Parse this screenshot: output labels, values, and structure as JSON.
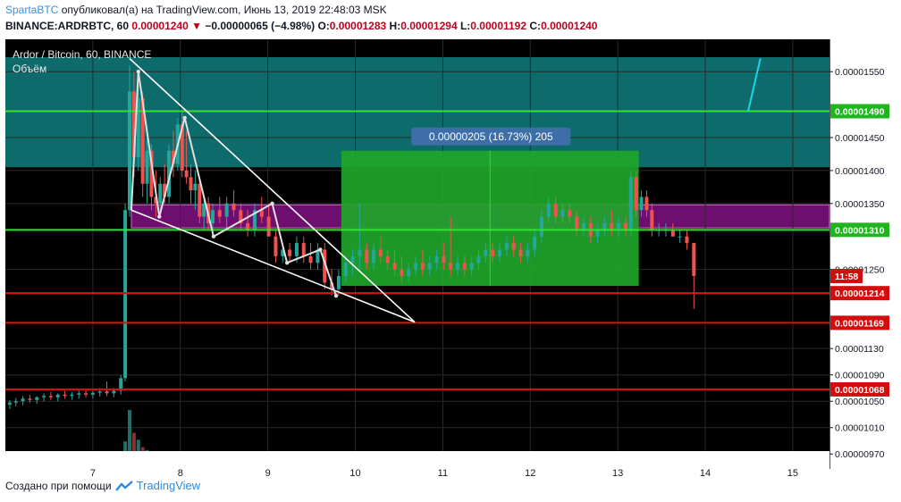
{
  "header": {
    "author": "SpartaBTC",
    "published_text": "опубликовал(а) на TradingView.com, Июнь 13, 2019 22:48:03 MSK",
    "symbol": "BINANCE:ARDRBTC, 60",
    "last": "0.00001240",
    "change_arrow": "▼",
    "change": "−0.00000065 (−4.98%)",
    "o_label": "O:",
    "o": "0.00001283",
    "h_label": "H:",
    "h": "0.00001294",
    "l_label": "L:",
    "l": "0.00001192",
    "c_label": "C:",
    "c": "0.00001240"
  },
  "footer": {
    "text": "Создано при помощи",
    "brand": "TradingView"
  },
  "colors": {
    "up": "#26a69a",
    "down": "#ef5350",
    "teal_zone": "#0e6b6b",
    "purple_zone": "#6e0e6e",
    "green_box": "#1fa82a",
    "green_line": "#33e033",
    "red_line": "#e01010"
  },
  "chart_data": {
    "type": "candlestick",
    "legend_line1": "Ardor / Bitcoin, 60, BINANCE",
    "legend_line2": "Объём",
    "x_ticks": [
      "7",
      "8",
      "9",
      "10",
      "11",
      "12",
      "13",
      "14",
      "15"
    ],
    "x_tick_days": [
      7,
      8,
      9,
      10,
      11,
      12,
      13,
      14,
      15
    ],
    "x_range_days": [
      6.0,
      15.42
    ],
    "y_range": [
      9.5e-06,
      1.572e-05
    ],
    "y_ticks": [
      "0.00001550",
      "0.00001450",
      "0.00001400",
      "0.00001350",
      "0.00001250",
      "0.00001130",
      "0.00001090",
      "0.00001050",
      "0.00001010",
      "0.00000970"
    ],
    "y_tick_values": [
      1.55e-05,
      1.45e-05,
      1.4e-05,
      1.35e-05,
      1.25e-05,
      1.13e-05,
      1.09e-05,
      1.05e-05,
      1.01e-05,
      9.7e-06
    ],
    "horizontal_levels": [
      {
        "value": 1.49e-05,
        "label": "0.00001490",
        "color": "#33e033"
      },
      {
        "value": 1.31e-05,
        "label": "0.00001310",
        "color": "#33e033"
      },
      {
        "value": 1.214e-05,
        "label": "0.00001214",
        "color": "#e01010"
      },
      {
        "value": 1.169e-05,
        "label": "0.00001169",
        "color": "#e01010"
      },
      {
        "value": 1.068e-05,
        "label": "0.00001068",
        "color": "#e01010"
      }
    ],
    "zones": [
      {
        "from": 1.405e-05,
        "to": 1.572e-05,
        "color": "#0e6b6b"
      },
      {
        "from": 1.313e-05,
        "to": 1.348e-05,
        "color": "#6e0e6e",
        "x_from": 7.44,
        "x_to": 15.42
      }
    ],
    "measure_box": {
      "x_from": 9.84,
      "x_to": 13.24,
      "from": 1.225e-05,
      "to": 1.43e-05,
      "label": "0.00000205 (16.73%) 205"
    },
    "timer_label": {
      "value": 1.24e-05,
      "text": "11:58"
    },
    "wedge": {
      "upper": [
        [
          7.42,
          1.57e-05
        ],
        [
          10.68,
          1.17e-05
        ]
      ],
      "lower": [
        [
          7.44,
          1.34e-05
        ],
        [
          10.68,
          1.17e-05
        ]
      ]
    },
    "zigzag": [
      [
        7.44,
        1.34e-05
      ],
      [
        7.52,
        1.55e-05
      ],
      [
        7.76,
        1.33e-05
      ],
      [
        8.05,
        1.48e-05
      ],
      [
        8.38,
        1.3e-05
      ],
      [
        9.05,
        1.35e-05
      ],
      [
        9.22,
        1.26e-05
      ],
      [
        9.6,
        1.28e-05
      ],
      [
        9.78,
        1.21e-05
      ]
    ],
    "candles": [
      [
        6.05,
        1.045e-05,
        1.052e-05,
        1.038e-05,
        1.048e-05
      ],
      [
        6.12,
        1.048e-05,
        1.055e-05,
        1.042e-05,
        1.05e-05
      ],
      [
        6.2,
        1.05e-05,
        1.058e-05,
        1.044e-05,
        1.054e-05
      ],
      [
        6.28,
        1.054e-05,
        1.06e-05,
        1.048e-05,
        1.052e-05
      ],
      [
        6.36,
        1.052e-05,
        1.058e-05,
        1.046e-05,
        1.056e-05
      ],
      [
        6.44,
        1.056e-05,
        1.062e-05,
        1.05e-05,
        1.058e-05
      ],
      [
        6.52,
        1.058e-05,
        1.064e-05,
        1.052e-05,
        1.056e-05
      ],
      [
        6.6,
        1.056e-05,
        1.062e-05,
        1.05e-05,
        1.06e-05
      ],
      [
        6.68,
        1.06e-05,
        1.066e-05,
        1.054e-05,
        1.058e-05
      ],
      [
        6.76,
        1.058e-05,
        1.064e-05,
        1.052e-05,
        1.06e-05
      ],
      [
        6.84,
        1.06e-05,
        1.068e-05,
        1.054e-05,
        1.062e-05
      ],
      [
        6.92,
        1.062e-05,
        1.068e-05,
        1.056e-05,
        1.06e-05
      ],
      [
        7.0,
        1.06e-05,
        1.066e-05,
        1.054e-05,
        1.063e-05
      ],
      [
        7.08,
        1.063e-05,
        1.07e-05,
        1.057e-05,
        1.065e-05
      ],
      [
        7.16,
        1.065e-05,
        1.08e-05,
        1.058e-05,
        1.062e-05
      ],
      [
        7.24,
        1.062e-05,
        1.07e-05,
        1.056e-05,
        1.066e-05
      ],
      [
        7.32,
        1.066e-05,
        1.09e-05,
        1.06e-05,
        1.085e-05
      ],
      [
        7.37,
        1.085e-05,
        1.35e-05,
        1.08e-05,
        1.34e-05
      ],
      [
        7.42,
        1.34e-05,
        1.56e-05,
        1.33e-05,
        1.52e-05
      ],
      [
        7.47,
        1.52e-05,
        1.55e-05,
        1.39e-05,
        1.42e-05
      ],
      [
        7.52,
        1.42e-05,
        1.53e-05,
        1.4e-05,
        1.51e-05
      ],
      [
        7.57,
        1.51e-05,
        1.52e-05,
        1.36e-05,
        1.38e-05
      ],
      [
        7.62,
        1.38e-05,
        1.45e-05,
        1.35e-05,
        1.43e-05
      ],
      [
        7.67,
        1.43e-05,
        1.44e-05,
        1.34e-05,
        1.36e-05
      ],
      [
        7.72,
        1.36e-05,
        1.4e-05,
        1.33e-05,
        1.35e-05
      ],
      [
        7.77,
        1.35e-05,
        1.39e-05,
        1.33e-05,
        1.38e-05
      ],
      [
        7.82,
        1.38e-05,
        1.41e-05,
        1.35e-05,
        1.36e-05
      ],
      [
        7.87,
        1.36e-05,
        1.44e-05,
        1.35e-05,
        1.43e-05
      ],
      [
        7.92,
        1.43e-05,
        1.46e-05,
        1.39e-05,
        1.41e-05
      ],
      [
        7.97,
        1.41e-05,
        1.48e-05,
        1.4e-05,
        1.47e-05
      ],
      [
        8.02,
        1.47e-05,
        1.49e-05,
        1.39e-05,
        1.4e-05
      ],
      [
        8.07,
        1.4e-05,
        1.46e-05,
        1.38e-05,
        1.39e-05
      ],
      [
        8.12,
        1.39e-05,
        1.41e-05,
        1.35e-05,
        1.37e-05
      ],
      [
        8.17,
        1.37e-05,
        1.4e-05,
        1.34e-05,
        1.38e-05
      ],
      [
        8.22,
        1.38e-05,
        1.39e-05,
        1.32e-05,
        1.33e-05
      ],
      [
        8.27,
        1.33e-05,
        1.36e-05,
        1.31e-05,
        1.35e-05
      ],
      [
        8.32,
        1.35e-05,
        1.36e-05,
        1.31e-05,
        1.32e-05
      ],
      [
        8.37,
        1.32e-05,
        1.35e-05,
        1.3e-05,
        1.34e-05
      ],
      [
        8.45,
        1.34e-05,
        1.36e-05,
        1.32e-05,
        1.33e-05
      ],
      [
        8.53,
        1.33e-05,
        1.36e-05,
        1.31e-05,
        1.35e-05
      ],
      [
        8.61,
        1.35e-05,
        1.37e-05,
        1.33e-05,
        1.34e-05
      ],
      [
        8.69,
        1.34e-05,
        1.35e-05,
        1.31e-05,
        1.32e-05
      ],
      [
        8.77,
        1.32e-05,
        1.34e-05,
        1.3e-05,
        1.31e-05
      ],
      [
        8.85,
        1.31e-05,
        1.35e-05,
        1.3e-05,
        1.34e-05
      ],
      [
        8.93,
        1.34e-05,
        1.36e-05,
        1.32e-05,
        1.33e-05
      ],
      [
        9.01,
        1.33e-05,
        1.35e-05,
        1.3e-05,
        1.3e-05
      ],
      [
        9.09,
        1.3e-05,
        1.31e-05,
        1.26e-05,
        1.27e-05
      ],
      [
        9.17,
        1.27e-05,
        1.29e-05,
        1.26e-05,
        1.28e-05
      ],
      [
        9.25,
        1.28e-05,
        1.29e-05,
        1.26e-05,
        1.27e-05
      ],
      [
        9.33,
        1.27e-05,
        1.3e-05,
        1.26e-05,
        1.29e-05
      ],
      [
        9.41,
        1.29e-05,
        1.3e-05,
        1.26e-05,
        1.27e-05
      ],
      [
        9.49,
        1.27e-05,
        1.29e-05,
        1.25e-05,
        1.26e-05
      ],
      [
        9.57,
        1.26e-05,
        1.29e-05,
        1.25e-05,
        1.28e-05
      ],
      [
        9.65,
        1.28e-05,
        1.29e-05,
        1.22e-05,
        1.23e-05
      ],
      [
        9.73,
        1.23e-05,
        1.25e-05,
        1.21e-05,
        1.22e-05
      ],
      [
        9.81,
        1.22e-05,
        1.25e-05,
        1.21e-05,
        1.24e-05
      ],
      [
        9.89,
        1.24e-05,
        1.27e-05,
        1.23e-05,
        1.26e-05
      ],
      [
        9.97,
        1.26e-05,
        1.28e-05,
        1.24e-05,
        1.27e-05
      ],
      [
        10.05,
        1.27e-05,
        1.35e-05,
        1.25e-05,
        1.28e-05
      ],
      [
        10.13,
        1.28e-05,
        1.29e-05,
        1.25e-05,
        1.26e-05
      ],
      [
        10.21,
        1.26e-05,
        1.29e-05,
        1.25e-05,
        1.28e-05
      ],
      [
        10.29,
        1.28e-05,
        1.3e-05,
        1.26e-05,
        1.27e-05
      ],
      [
        10.37,
        1.27e-05,
        1.28e-05,
        1.25e-05,
        1.26e-05
      ],
      [
        10.45,
        1.26e-05,
        1.28e-05,
        1.24e-05,
        1.25e-05
      ],
      [
        10.53,
        1.25e-05,
        1.27e-05,
        1.23e-05,
        1.24e-05
      ],
      [
        10.61,
        1.24e-05,
        1.26e-05,
        1.23e-05,
        1.25e-05
      ],
      [
        10.69,
        1.25e-05,
        1.27e-05,
        1.24e-05,
        1.26e-05
      ],
      [
        10.77,
        1.26e-05,
        1.28e-05,
        1.24e-05,
        1.25e-05
      ],
      [
        10.85,
        1.25e-05,
        1.27e-05,
        1.24e-05,
        1.26e-05
      ],
      [
        10.93,
        1.26e-05,
        1.28e-05,
        1.25e-05,
        1.27e-05
      ],
      [
        11.01,
        1.27e-05,
        1.29e-05,
        1.25e-05,
        1.26e-05
      ],
      [
        11.09,
        1.26e-05,
        1.33e-05,
        1.24e-05,
        1.25e-05
      ],
      [
        11.17,
        1.25e-05,
        1.27e-05,
        1.24e-05,
        1.26e-05
      ],
      [
        11.25,
        1.26e-05,
        1.27e-05,
        1.24e-05,
        1.25e-05
      ],
      [
        11.33,
        1.25e-05,
        1.27e-05,
        1.24e-05,
        1.26e-05
      ],
      [
        11.41,
        1.26e-05,
        1.28e-05,
        1.25e-05,
        1.27e-05
      ],
      [
        11.49,
        1.27e-05,
        1.29e-05,
        1.26e-05,
        1.28e-05
      ],
      [
        11.57,
        1.28e-05,
        1.29e-05,
        1.26e-05,
        1.27e-05
      ],
      [
        11.65,
        1.27e-05,
        1.29e-05,
        1.26e-05,
        1.28e-05
      ],
      [
        11.73,
        1.28e-05,
        1.3e-05,
        1.27e-05,
        1.29e-05
      ],
      [
        11.81,
        1.29e-05,
        1.3e-05,
        1.27e-05,
        1.28e-05
      ],
      [
        11.89,
        1.28e-05,
        1.29e-05,
        1.26e-05,
        1.27e-05
      ],
      [
        11.97,
        1.27e-05,
        1.29e-05,
        1.26e-05,
        1.28e-05
      ],
      [
        12.05,
        1.28e-05,
        1.31e-05,
        1.27e-05,
        1.3e-05
      ],
      [
        12.13,
        1.3e-05,
        1.34e-05,
        1.29e-05,
        1.33e-05
      ],
      [
        12.21,
        1.33e-05,
        1.36e-05,
        1.32e-05,
        1.35e-05
      ],
      [
        12.29,
        1.35e-05,
        1.36e-05,
        1.32e-05,
        1.33e-05
      ],
      [
        12.37,
        1.33e-05,
        1.35e-05,
        1.32e-05,
        1.34e-05
      ],
      [
        12.45,
        1.34e-05,
        1.35e-05,
        1.32e-05,
        1.33e-05
      ],
      [
        12.53,
        1.33e-05,
        1.34e-05,
        1.3e-05,
        1.31e-05
      ],
      [
        12.61,
        1.31e-05,
        1.33e-05,
        1.3e-05,
        1.32e-05
      ],
      [
        12.69,
        1.32e-05,
        1.33e-05,
        1.29e-05,
        1.3e-05
      ],
      [
        12.77,
        1.3e-05,
        1.32e-05,
        1.29e-05,
        1.31e-05
      ],
      [
        12.85,
        1.31e-05,
        1.33e-05,
        1.3e-05,
        1.32e-05
      ],
      [
        12.93,
        1.32e-05,
        1.34e-05,
        1.3e-05,
        1.31e-05
      ],
      [
        13.01,
        1.31e-05,
        1.33e-05,
        1.3e-05,
        1.32e-05
      ],
      [
        13.09,
        1.32e-05,
        1.33e-05,
        1.3e-05,
        1.31e-05
      ],
      [
        13.15,
        1.31e-05,
        1.4e-05,
        1.3e-05,
        1.39e-05
      ],
      [
        13.21,
        1.39e-05,
        1.4e-05,
        1.33e-05,
        1.34e-05
      ],
      [
        13.27,
        1.34e-05,
        1.37e-05,
        1.33e-05,
        1.36e-05
      ],
      [
        13.33,
        1.36e-05,
        1.37e-05,
        1.33e-05,
        1.34e-05
      ],
      [
        13.39,
        1.34e-05,
        1.35e-05,
        1.3e-05,
        1.31e-05
      ],
      [
        13.47,
        1.31e-05,
        1.32e-05,
        1.3e-05,
        1.31e-05
      ],
      [
        13.55,
        1.31e-05,
        1.32e-05,
        1.3e-05,
        1.31e-05
      ],
      [
        13.63,
        1.31e-05,
        1.32e-05,
        1.3e-05,
        1.3e-05
      ],
      [
        13.71,
        1.3e-05,
        1.31e-05,
        1.29e-05,
        1.3e-05
      ],
      [
        13.79,
        1.3e-05,
        1.31e-05,
        1.28e-05,
        1.29e-05
      ],
      [
        13.87,
        1.29e-05,
        1.29e-05,
        1.19e-05,
        1.24e-05
      ]
    ],
    "volume": [
      [
        6.12,
        0.03
      ],
      [
        6.4,
        0.02
      ],
      [
        6.7,
        0.03
      ],
      [
        7.0,
        0.02
      ],
      [
        7.3,
        0.06
      ],
      [
        7.37,
        0.45
      ],
      [
        7.42,
        1.0
      ],
      [
        7.47,
        0.6
      ],
      [
        7.52,
        0.48
      ],
      [
        7.57,
        0.35
      ],
      [
        7.62,
        0.3
      ],
      [
        7.67,
        0.25
      ],
      [
        7.72,
        0.22
      ],
      [
        7.77,
        0.2
      ],
      [
        7.82,
        0.18
      ],
      [
        7.87,
        0.15
      ],
      [
        7.92,
        0.18
      ],
      [
        7.97,
        0.2
      ],
      [
        8.02,
        0.22
      ],
      [
        8.07,
        0.15
      ],
      [
        8.12,
        0.12
      ],
      [
        8.17,
        0.1
      ],
      [
        8.22,
        0.09
      ],
      [
        8.27,
        0.08
      ],
      [
        8.32,
        0.07
      ],
      [
        8.37,
        0.06
      ],
      [
        8.45,
        0.06
      ],
      [
        8.53,
        0.05
      ],
      [
        8.61,
        0.05
      ],
      [
        8.69,
        0.04
      ],
      [
        8.77,
        0.05
      ],
      [
        8.85,
        0.04
      ],
      [
        8.93,
        0.04
      ],
      [
        9.01,
        0.05
      ],
      [
        9.09,
        0.06
      ],
      [
        9.17,
        0.05
      ],
      [
        9.25,
        0.04
      ],
      [
        9.33,
        0.04
      ],
      [
        9.41,
        0.05
      ],
      [
        9.49,
        0.04
      ],
      [
        9.57,
        0.04
      ],
      [
        9.65,
        0.06
      ],
      [
        9.73,
        0.05
      ],
      [
        9.81,
        0.06
      ],
      [
        9.89,
        0.05
      ],
      [
        9.97,
        0.05
      ],
      [
        10.05,
        0.1
      ],
      [
        10.13,
        0.04
      ],
      [
        10.21,
        0.05
      ],
      [
        10.29,
        0.04
      ],
      [
        10.37,
        0.04
      ],
      [
        10.45,
        0.04
      ],
      [
        10.53,
        0.03
      ],
      [
        10.61,
        0.03
      ],
      [
        10.69,
        0.03
      ],
      [
        10.77,
        0.04
      ],
      [
        10.85,
        0.03
      ],
      [
        10.93,
        0.03
      ],
      [
        11.01,
        0.04
      ],
      [
        11.09,
        0.07
      ],
      [
        11.17,
        0.03
      ],
      [
        11.25,
        0.03
      ],
      [
        11.33,
        0.03
      ],
      [
        11.41,
        0.04
      ],
      [
        11.49,
        0.03
      ],
      [
        11.57,
        0.03
      ],
      [
        11.65,
        0.03
      ],
      [
        11.73,
        0.03
      ],
      [
        11.81,
        0.03
      ],
      [
        11.89,
        0.03
      ],
      [
        11.97,
        0.03
      ],
      [
        12.05,
        0.04
      ],
      [
        12.13,
        0.06
      ],
      [
        12.21,
        0.05
      ],
      [
        12.29,
        0.04
      ],
      [
        12.37,
        0.03
      ],
      [
        12.45,
        0.03
      ],
      [
        12.53,
        0.03
      ],
      [
        12.61,
        0.03
      ],
      [
        12.69,
        0.04
      ],
      [
        12.77,
        0.03
      ],
      [
        12.85,
        0.03
      ],
      [
        12.93,
        0.03
      ],
      [
        13.01,
        0.03
      ],
      [
        13.09,
        0.03
      ],
      [
        13.15,
        0.08
      ],
      [
        13.21,
        0.05
      ],
      [
        13.27,
        0.04
      ],
      [
        13.33,
        0.03
      ],
      [
        13.39,
        0.04
      ],
      [
        13.47,
        0.02
      ],
      [
        13.55,
        0.02
      ],
      [
        13.63,
        0.02
      ],
      [
        13.71,
        0.02
      ],
      [
        13.79,
        0.03
      ],
      [
        13.87,
        0.07
      ]
    ]
  }
}
